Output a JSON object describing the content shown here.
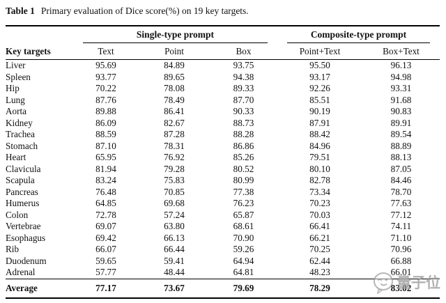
{
  "caption": {
    "label": "Table 1",
    "text": "Primary evaluation of Dice score(%) on 19 key targets."
  },
  "table": {
    "row_header": "Key targets",
    "groups": [
      {
        "label": "Single-type prompt",
        "columns": [
          "Text",
          "Point",
          "Box"
        ]
      },
      {
        "label": "Composite-type prompt",
        "columns": [
          "Point+Text",
          "Box+Text"
        ]
      }
    ],
    "rows": [
      {
        "target": "Liver",
        "values": [
          "95.69",
          "84.89",
          "93.75",
          "95.50",
          "96.13"
        ]
      },
      {
        "target": "Spleen",
        "values": [
          "93.77",
          "89.65",
          "94.38",
          "93.17",
          "94.98"
        ]
      },
      {
        "target": "Hip",
        "values": [
          "70.22",
          "78.08",
          "89.33",
          "92.26",
          "93.31"
        ]
      },
      {
        "target": "Lung",
        "values": [
          "87.76",
          "78.49",
          "87.70",
          "85.51",
          "91.68"
        ]
      },
      {
        "target": "Aorta",
        "values": [
          "89.88",
          "86.41",
          "90.33",
          "90.19",
          "90.83"
        ]
      },
      {
        "target": "Kidney",
        "values": [
          "86.09",
          "82.67",
          "88.73",
          "87.91",
          "89.91"
        ]
      },
      {
        "target": "Trachea",
        "values": [
          "88.59",
          "87.28",
          "88.28",
          "88.42",
          "89.54"
        ]
      },
      {
        "target": "Stomach",
        "values": [
          "87.10",
          "78.31",
          "86.86",
          "84.96",
          "88.89"
        ]
      },
      {
        "target": "Heart",
        "values": [
          "65.95",
          "76.92",
          "85.26",
          "79.51",
          "88.13"
        ]
      },
      {
        "target": "Clavicula",
        "values": [
          "81.94",
          "79.28",
          "80.52",
          "80.10",
          "87.05"
        ]
      },
      {
        "target": "Scapula",
        "values": [
          "83.24",
          "75.83",
          "80.99",
          "82.78",
          "84.46"
        ]
      },
      {
        "target": "Pancreas",
        "values": [
          "76.48",
          "70.85",
          "77.38",
          "73.34",
          "78.70"
        ]
      },
      {
        "target": "Humerus",
        "values": [
          "64.85",
          "69.68",
          "76.23",
          "70.23",
          "77.63"
        ]
      },
      {
        "target": "Colon",
        "values": [
          "72.78",
          "57.24",
          "65.87",
          "70.03",
          "77.12"
        ]
      },
      {
        "target": "Vertebrae",
        "values": [
          "69.07",
          "63.80",
          "68.61",
          "66.41",
          "74.11"
        ]
      },
      {
        "target": "Esophagus",
        "values": [
          "69.42",
          "66.13",
          "70.90",
          "66.21",
          "71.10"
        ]
      },
      {
        "target": "Rib",
        "values": [
          "66.07",
          "66.44",
          "59.26",
          "70.25",
          "70.96"
        ]
      },
      {
        "target": "Duodenum",
        "values": [
          "59.65",
          "59.41",
          "64.94",
          "62.44",
          "66.88"
        ]
      },
      {
        "target": "Adrenal",
        "values": [
          "57.77",
          "48.44",
          "64.81",
          "48.23",
          "66.01"
        ]
      }
    ],
    "average": {
      "target": "Average",
      "values": [
        "77.17",
        "73.67",
        "79.69",
        "78.29",
        "83.02"
      ]
    }
  },
  "watermark": {
    "text": "量子位",
    "icon": "winking-chat-face-icon",
    "color": "#9e9e9e"
  },
  "colors": {
    "text": "#111111",
    "rule": "#000000",
    "background": "#ffffff"
  }
}
